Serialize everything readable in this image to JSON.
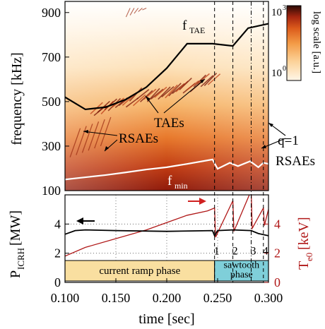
{
  "chart_data": [
    {
      "type": "heatmap",
      "ylabel": "frequency [kHz]",
      "ylim": [
        100,
        950
      ],
      "xlim": [
        0.1,
        0.3
      ],
      "yticks": [
        "100",
        "300",
        "500",
        "700",
        "900"
      ],
      "colorbar": {
        "label": "log scale [a.u.]",
        "ticks": [
          "10",
          "10"
        ],
        "tick_sups": [
          "3",
          "0"
        ]
      },
      "annotations": {
        "f_tae": "f",
        "f_tae_sub": "TAE",
        "f_min": "f",
        "f_min_sub": "min",
        "taes": "TAEs",
        "rsaes": "RSAEs",
        "q1": "q=1",
        "q1_rsaes": "RSAEs"
      },
      "series": [
        {
          "name": "f_TAE",
          "x": [
            0.1,
            0.12,
            0.14,
            0.16,
            0.18,
            0.2,
            0.22,
            0.245,
            0.265,
            0.28,
            0.3
          ],
          "y": [
            520,
            465,
            475,
            510,
            565,
            650,
            760,
            760,
            750,
            830,
            850
          ]
        },
        {
          "name": "f_min",
          "x": [
            0.1,
            0.12,
            0.14,
            0.16,
            0.18,
            0.2,
            0.22,
            0.245,
            0.25,
            0.262,
            0.27,
            0.282,
            0.29,
            0.295,
            0.3
          ],
          "y": [
            150,
            160,
            170,
            182,
            195,
            205,
            220,
            240,
            198,
            225,
            210,
            232,
            205,
            225,
            220
          ]
        }
      ],
      "sawtooth_crashes": [
        0.247,
        0.265,
        0.283,
        0.295
      ]
    },
    {
      "type": "line",
      "xlabel": "time [sec]",
      "ylabel": "P",
      "ylabel_sub": "ICRH",
      "ylabel_unit": " [MW]",
      "y2label": "T",
      "y2label_sub": "e0",
      "y2label_unit": " [keV]",
      "xlim": [
        0.1,
        0.3
      ],
      "ylim": [
        0,
        6
      ],
      "xticks": [
        "0.100",
        "0.150",
        "0.200",
        "0.250",
        "0.300"
      ],
      "yticks": [
        "0",
        "2",
        "4"
      ],
      "y2ticks": [
        "0",
        "2",
        "4"
      ],
      "series": [
        {
          "name": "P_ICRH",
          "x": [
            0.1,
            0.11,
            0.12,
            0.15,
            0.2,
            0.245,
            0.247,
            0.25,
            0.265,
            0.283,
            0.29,
            0.3
          ],
          "y": [
            3.3,
            3.55,
            3.6,
            3.55,
            3.5,
            3.55,
            3.2,
            3.55,
            3.6,
            3.55,
            3.35,
            3.2
          ]
        },
        {
          "name": "T_e0",
          "x": [
            0.1,
            0.12,
            0.15,
            0.18,
            0.2,
            0.22,
            0.24,
            0.247,
            0.248,
            0.265,
            0.266,
            0.283,
            0.284,
            0.295,
            0.296,
            0.3
          ],
          "y": [
            1.8,
            2.4,
            3.0,
            3.6,
            4.1,
            4.6,
            4.9,
            5.1,
            3.1,
            5.6,
            3.5,
            6.3,
            3.7,
            5.1,
            3.9,
            5.0
          ]
        }
      ],
      "phases": [
        {
          "label": "current ramp phase",
          "x_start": 0.1,
          "x_end": 0.247,
          "color": "#f9dfa0"
        },
        {
          "label": "sawtooth",
          "label2": "phase",
          "x_start": 0.247,
          "x_end": 0.3,
          "color": "#7fcfd9"
        }
      ],
      "crash_labels": [
        "1",
        "2",
        "3",
        "4"
      ],
      "colors": {
        "p_icrh": "#000000",
        "t_e0": "#b01818",
        "arrow_red": "#d02020"
      }
    }
  ]
}
